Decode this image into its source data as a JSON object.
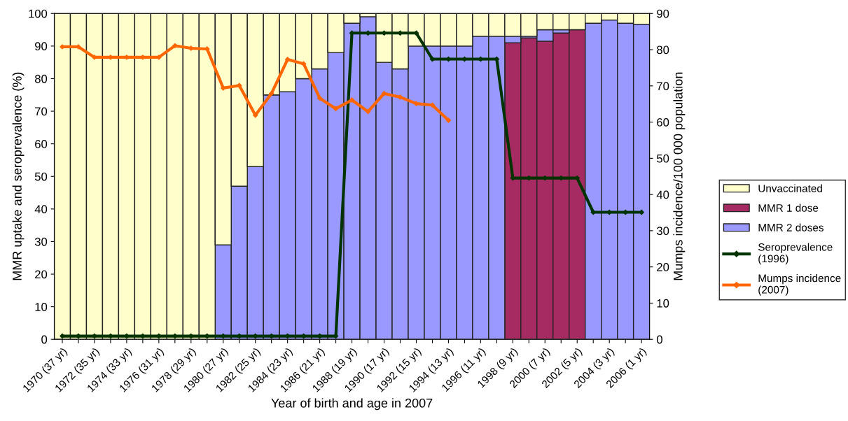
{
  "chart_data": {
    "type": "bar",
    "stacked": true,
    "categories": [
      "1970 (37 yr)",
      null,
      "1972 (35 yr)",
      null,
      "1974 (33 yr)",
      null,
      "1976 (31 yr)",
      null,
      "1978 (29 yr)",
      null,
      "1980 (27 yr)",
      null,
      "1982 (25 yr)",
      null,
      "1984 (23 yr)",
      null,
      "1986 (21 yr)",
      null,
      "1988 (19 yr)",
      null,
      "1990 (17 yr)",
      null,
      "1992 (15 yr)",
      null,
      "1994 (13 yr)",
      null,
      "1996 (11 yr)",
      null,
      "1998 (9 yr)",
      null,
      "2000 (7 yr)",
      null,
      "2002 (5 yr)",
      null,
      "2004 (3 yr)",
      null,
      "2006 (1 yr)"
    ],
    "xlabel": "Year of birth and age in 2007",
    "ylabel": "MMR uptake and seroprevalence (%)",
    "y2label": "Mumps incidence/100 000 population",
    "ylim": [
      0,
      100
    ],
    "yticks": [
      0,
      10,
      20,
      30,
      40,
      50,
      60,
      70,
      80,
      90,
      100
    ],
    "y2lim": [
      0,
      90
    ],
    "y2ticks": [
      0,
      10,
      20,
      30,
      40,
      50,
      60,
      70,
      80,
      90
    ],
    "legend": "right",
    "grid": false,
    "series": [
      {
        "name": "MMR 1 dose",
        "color": "#a62b62",
        "values": [
          0,
          0,
          0,
          0,
          0,
          0,
          0,
          0,
          0,
          0,
          0,
          0,
          0,
          0,
          0,
          0,
          0,
          0,
          0,
          0,
          0,
          0,
          0,
          0,
          0,
          0,
          0,
          0,
          91,
          92.5,
          91.5,
          94,
          95,
          0,
          0,
          0,
          0
        ]
      },
      {
        "name": "MMR 2 doses",
        "color": "#9999ff",
        "values": [
          0,
          0,
          0,
          0,
          0,
          0,
          0,
          0,
          0,
          0,
          29,
          47,
          53,
          75,
          76,
          80,
          83,
          88,
          97,
          99,
          85,
          83,
          90,
          90,
          90,
          90,
          93,
          93,
          2,
          0.5,
          3.5,
          1,
          0,
          97,
          98,
          97,
          96.7
        ]
      },
      {
        "name": "Unvaccinated",
        "color": "#ffffcc",
        "values": [
          100,
          100,
          100,
          100,
          100,
          100,
          100,
          100,
          100,
          100,
          71,
          53,
          47,
          25,
          24,
          20,
          17,
          12,
          3,
          1,
          15,
          17,
          10,
          10,
          10,
          10,
          7,
          7,
          7,
          7,
          5,
          5,
          5,
          3,
          2,
          3,
          3.3
        ]
      },
      {
        "name": "Seroprevalence\n(1996)",
        "type": "line",
        "color": "#003300",
        "marker": "diamond",
        "values": [
          1,
          1,
          1,
          1,
          1,
          1,
          1,
          1,
          1,
          1,
          1,
          1,
          1,
          1,
          1,
          1,
          1,
          1,
          94,
          94,
          94,
          94,
          94,
          86,
          86,
          86,
          86,
          86,
          49.5,
          49.5,
          49.5,
          49.5,
          49.5,
          39,
          39,
          39,
          39
        ]
      },
      {
        "name": "Mumps incidence\n(2007)",
        "type": "line",
        "axis": "y2",
        "color": "#ff6600",
        "marker": "diamond",
        "values": [
          80.8,
          80.8,
          77.9,
          77.9,
          77.9,
          77.9,
          77.9,
          81.1,
          80.4,
          80.2,
          69.4,
          70.1,
          61.9,
          67.9,
          77.3,
          76.1,
          66.6,
          63.7,
          66.1,
          62.9,
          67.9,
          66.9,
          65.1,
          64.7,
          60.5,
          null,
          null,
          null,
          null,
          null,
          null,
          null,
          null,
          null,
          null,
          null,
          null
        ]
      }
    ]
  }
}
